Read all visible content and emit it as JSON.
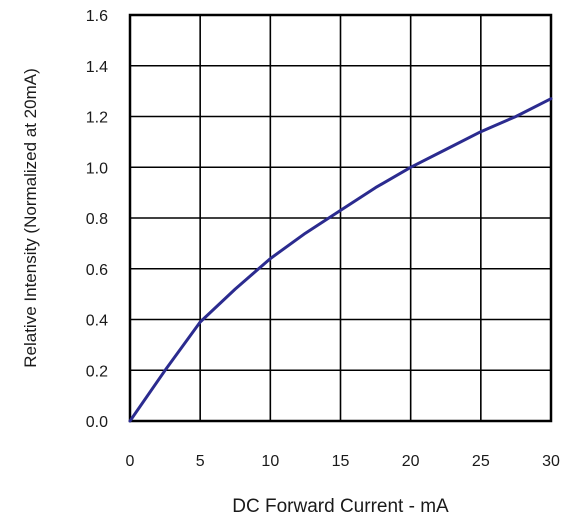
{
  "chart_data": {
    "type": "line",
    "title": "",
    "xlabel": "DC Forward Current - mA",
    "ylabel": "Relative Intensity (Normalized at 20mA)",
    "xlim": [
      0,
      30
    ],
    "ylim": [
      0.0,
      1.6
    ],
    "x_ticks": [
      "0",
      "5",
      "10",
      "15",
      "20",
      "25",
      "30"
    ],
    "y_ticks": [
      "0.0",
      "0.2",
      "0.4",
      "0.6",
      "0.8",
      "1.0",
      "1.2",
      "1.4",
      "1.6"
    ],
    "grid": true,
    "line_color": "#2b2b8f",
    "series": [
      {
        "x": [
          0,
          2.5,
          5,
          7.5,
          10,
          12.5,
          15,
          17.5,
          20,
          22.5,
          25,
          27.5,
          30
        ],
        "values": [
          0.0,
          0.2,
          0.39,
          0.52,
          0.64,
          0.74,
          0.83,
          0.92,
          1.0,
          1.07,
          1.14,
          1.2,
          1.27
        ]
      }
    ]
  }
}
